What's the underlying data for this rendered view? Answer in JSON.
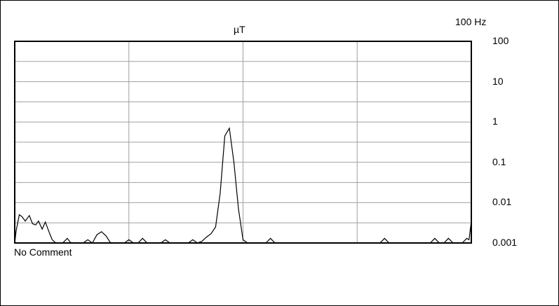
{
  "chart_data": {
    "type": "line",
    "title": "",
    "unit_label": "µT",
    "frequency_label": "100 Hz",
    "comment": "No Comment",
    "y_scale": "log",
    "ylim": [
      0.001,
      100
    ],
    "y_ticks": [
      "100",
      "10",
      "1",
      "0.1",
      "0.01",
      "0.001"
    ],
    "y_tick_values": [
      100,
      10,
      1,
      0.1,
      0.01,
      0.001
    ],
    "grid": true,
    "series": [
      {
        "x": [
          0,
          0.3,
          1,
          1.6,
          2.3,
          3.2,
          3.9,
          4.6,
          5.2,
          6,
          6.7,
          7.5,
          8.2,
          9,
          9.5,
          10.5,
          11.5,
          12.3,
          13,
          14,
          15,
          16,
          17,
          18,
          19,
          20,
          21,
          22,
          23,
          24,
          25,
          26,
          27,
          28,
          29,
          30,
          31,
          32,
          33,
          34,
          35,
          36,
          37,
          38,
          39,
          40,
          41,
          42,
          43,
          44,
          45,
          46,
          47,
          48,
          49,
          50,
          51,
          52,
          53,
          54,
          55,
          56,
          57,
          58,
          59,
          60,
          61,
          62,
          63,
          64,
          65,
          66,
          67,
          68,
          69,
          70,
          71,
          72,
          73,
          74,
          75,
          76,
          77,
          78,
          79,
          80,
          81,
          82,
          83,
          84,
          85,
          86,
          87,
          88,
          89,
          90,
          91,
          92,
          93,
          94,
          95,
          96,
          97,
          98,
          99,
          99.5,
          100
        ],
        "y": [
          0.001,
          0.001,
          0.001,
          0.001,
          0.001,
          0.001,
          0.001,
          0.001,
          0.001,
          0.001,
          0.001,
          0.001,
          0.001,
          0.001,
          0.001,
          0.001,
          0.001,
          0.001,
          0.001,
          0.001,
          0.001,
          0.001,
          0.001,
          0.001,
          0.001,
          0.001,
          0.001,
          0.001,
          0.001,
          0.001,
          0.001,
          0.001,
          0.001,
          0.001,
          0.001,
          0.001,
          0.001,
          0.001,
          0.001,
          0.001,
          0.001,
          0.001,
          0.001,
          0.001,
          0.001,
          0.001,
          0.001,
          0.001,
          0.001,
          0.001,
          0.001,
          0.001,
          0.001,
          0.001,
          0.001,
          0.001,
          0.001,
          0.001,
          0.001,
          0.001,
          0.001,
          0.001,
          0.001,
          0.001,
          0.001,
          0.001,
          0.001,
          0.001,
          0.001,
          0.001,
          0.001,
          0.001,
          0.001,
          0.001,
          0.001,
          0.001,
          0.001,
          0.001,
          0.001,
          0.001,
          0.001,
          0.001,
          0.001,
          0.001,
          0.001,
          0.001,
          0.001,
          0.001,
          0.001,
          0.001,
          0.001,
          0.001,
          0.001,
          0.001,
          0.001,
          0.001,
          0.001,
          0.001,
          0.001,
          0.001,
          0.001,
          0.001,
          0.001,
          0.001,
          0.001,
          0.001,
          0.001
        ]
      }
    ]
  }
}
